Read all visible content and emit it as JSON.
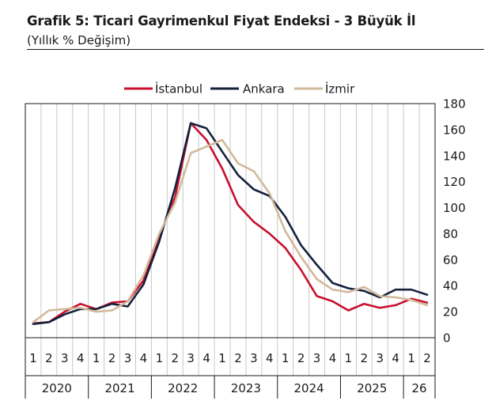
{
  "title": "Grafik 5: Ticari Gayrimenkul Fiyat Endeksi - 3 Büyük İl",
  "subtitle": "(Yıllık % Değişim)",
  "chart_data": {
    "type": "line",
    "x_quarters": [
      "1",
      "2",
      "3",
      "4",
      "1",
      "2",
      "3",
      "4",
      "1",
      "2",
      "3",
      "4",
      "1",
      "2",
      "3",
      "4",
      "1",
      "2",
      "3",
      "4",
      "1",
      "2",
      "3",
      "4",
      "1",
      "2"
    ],
    "x_years": [
      "2020",
      "2021",
      "2022",
      "2023",
      "2024",
      "2025",
      "26"
    ],
    "year_spans": [
      4,
      4,
      4,
      4,
      4,
      4,
      2
    ],
    "y_ticks": [
      "0",
      "20",
      "40",
      "60",
      "80",
      "100",
      "120",
      "140",
      "160",
      "180"
    ],
    "ylim": [
      0,
      180
    ],
    "y_axis_side": "right",
    "legend_position": "top",
    "grid": "vertical",
    "series": [
      {
        "name": "İstanbul",
        "color": "#c8102e",
        "values": [
          11,
          12,
          20,
          26,
          22,
          27,
          28,
          44,
          78,
          108,
          165,
          152,
          130,
          102,
          89,
          80,
          69,
          52,
          32,
          28,
          21,
          26,
          23,
          25,
          30,
          27
        ]
      },
      {
        "name": "Ankara",
        "color": "#14213d",
        "values": [
          10.5,
          12,
          18,
          22,
          22,
          26,
          24,
          41,
          74,
          115,
          165,
          161,
          143,
          125,
          114,
          109,
          93,
          71,
          56,
          42,
          38,
          36,
          31,
          37,
          37,
          33
        ]
      },
      {
        "name": "İzmir",
        "color": "#d2b99b",
        "values": [
          12,
          21,
          22,
          23,
          20,
          21,
          28,
          48,
          80,
          104,
          142,
          147,
          152,
          134,
          128,
          111,
          82,
          62,
          45,
          37,
          35,
          39,
          32,
          31,
          29,
          25
        ]
      }
    ]
  }
}
